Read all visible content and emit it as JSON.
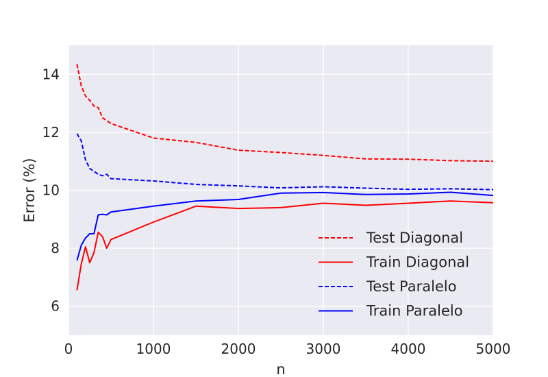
{
  "chart_data": {
    "type": "line",
    "title": "",
    "xlabel": "n",
    "ylabel": "Error (%)",
    "xlim": [
      0,
      5000
    ],
    "ylim": [
      5,
      15
    ],
    "xticks": [
      0,
      1000,
      2000,
      3000,
      4000,
      5000
    ],
    "yticks": [
      6,
      8,
      10,
      12,
      14
    ],
    "grid": true,
    "legend_position": "lower-right",
    "colors": {
      "background": "#eaeaf2",
      "grid": "#ffffff",
      "red": "#ff0000",
      "blue": "#0000ff",
      "text": "#262626"
    },
    "series": [
      {
        "name": "Test Diagonal",
        "color": "#ff0000",
        "linestyle": "dashed",
        "x": [
          100,
          150,
          200,
          250,
          300,
          350,
          400,
          450,
          500,
          1000,
          1500,
          2000,
          2500,
          3000,
          3500,
          4000,
          4500,
          5000
        ],
        "y": [
          14.35,
          13.6,
          13.25,
          13.1,
          12.9,
          12.85,
          12.5,
          12.4,
          12.3,
          11.8,
          11.65,
          11.38,
          11.3,
          11.2,
          11.08,
          11.07,
          11.02,
          11.0
        ]
      },
      {
        "name": "Train Diagonal",
        "color": "#ff0000",
        "linestyle": "solid",
        "x": [
          100,
          150,
          200,
          250,
          300,
          350,
          400,
          450,
          500,
          1000,
          1500,
          2000,
          2500,
          3000,
          3500,
          4000,
          4500,
          5000
        ],
        "y": [
          6.55,
          7.45,
          8.05,
          7.5,
          7.85,
          8.55,
          8.4,
          8.0,
          8.3,
          8.9,
          9.45,
          9.37,
          9.4,
          9.55,
          9.48,
          9.55,
          9.63,
          9.57
        ]
      },
      {
        "name": "Test Paralelo",
        "color": "#0000ff",
        "linestyle": "dashed",
        "x": [
          100,
          150,
          200,
          250,
          300,
          350,
          400,
          450,
          500,
          1000,
          1500,
          2000,
          2500,
          3000,
          3500,
          4000,
          4500,
          5000
        ],
        "y": [
          11.95,
          11.7,
          11.05,
          10.75,
          10.65,
          10.55,
          10.5,
          10.55,
          10.4,
          10.32,
          10.2,
          10.15,
          10.08,
          10.12,
          10.07,
          10.03,
          10.05,
          10.02
        ]
      },
      {
        "name": "Train Paralelo",
        "color": "#0000ff",
        "linestyle": "solid",
        "x": [
          100,
          150,
          200,
          250,
          300,
          350,
          400,
          450,
          500,
          1000,
          1500,
          2000,
          2500,
          3000,
          3500,
          4000,
          4500,
          5000
        ],
        "y": [
          7.58,
          8.1,
          8.35,
          8.5,
          8.5,
          9.15,
          9.17,
          9.15,
          9.25,
          9.45,
          9.63,
          9.68,
          9.9,
          9.92,
          9.85,
          9.87,
          9.93,
          9.82
        ]
      }
    ]
  }
}
